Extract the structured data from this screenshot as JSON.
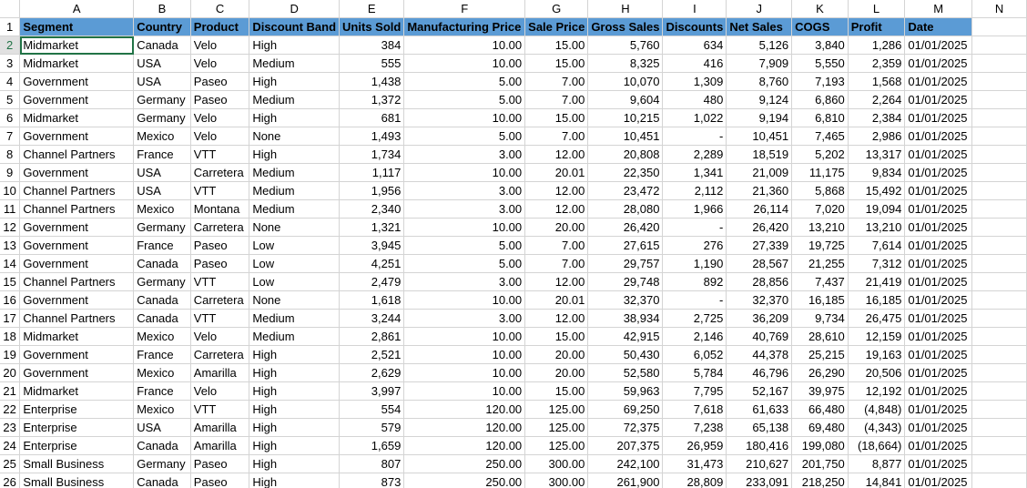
{
  "columns": [
    "A",
    "B",
    "C",
    "D",
    "E",
    "F",
    "G",
    "H",
    "I",
    "J",
    "K",
    "L",
    "M",
    "N"
  ],
  "headers": [
    "Segment",
    "Country",
    "Product",
    "Discount Band",
    "Units Sold",
    "Manufacturing Price",
    "Sale Price",
    "Gross Sales",
    "Discounts",
    "Net Sales",
    "COGS",
    "Profit",
    "Date"
  ],
  "row_numbers": [
    "1",
    "2",
    "3",
    "4",
    "5",
    "6",
    "7",
    "8",
    "9",
    "10",
    "11",
    "12",
    "13",
    "14",
    "15",
    "16",
    "17",
    "18",
    "19",
    "20",
    "21",
    "22",
    "23",
    "24",
    "25",
    "26"
  ],
  "rows": [
    [
      "Midmarket",
      "Canada",
      "Velo",
      "High",
      "384",
      "10.00",
      "15.00",
      "5,760",
      "634",
      "5,126",
      "3,840",
      "1,286",
      "01/01/2025"
    ],
    [
      "Midmarket",
      "USA",
      "Velo",
      "Medium",
      "555",
      "10.00",
      "15.00",
      "8,325",
      "416",
      "7,909",
      "5,550",
      "2,359",
      "01/01/2025"
    ],
    [
      "Government",
      "USA",
      "Paseo",
      "High",
      "1,438",
      "5.00",
      "7.00",
      "10,070",
      "1,309",
      "8,760",
      "7,193",
      "1,568",
      "01/01/2025"
    ],
    [
      "Government",
      "Germany",
      "Paseo",
      "Medium",
      "1,372",
      "5.00",
      "7.00",
      "9,604",
      "480",
      "9,124",
      "6,860",
      "2,264",
      "01/01/2025"
    ],
    [
      "Midmarket",
      "Germany",
      "Velo",
      "High",
      "681",
      "10.00",
      "15.00",
      "10,215",
      "1,022",
      "9,194",
      "6,810",
      "2,384",
      "01/01/2025"
    ],
    [
      "Government",
      "Mexico",
      "Velo",
      "None",
      "1,493",
      "5.00",
      "7.00",
      "10,451",
      "-",
      "10,451",
      "7,465",
      "2,986",
      "01/01/2025"
    ],
    [
      "Channel Partners",
      "France",
      "VTT",
      "High",
      "1,734",
      "3.00",
      "12.00",
      "20,808",
      "2,289",
      "18,519",
      "5,202",
      "13,317",
      "01/01/2025"
    ],
    [
      "Government",
      "USA",
      "Carretera",
      "Medium",
      "1,117",
      "10.00",
      "20.01",
      "22,350",
      "1,341",
      "21,009",
      "11,175",
      "9,834",
      "01/01/2025"
    ],
    [
      "Channel Partners",
      "USA",
      "VTT",
      "Medium",
      "1,956",
      "3.00",
      "12.00",
      "23,472",
      "2,112",
      "21,360",
      "5,868",
      "15,492",
      "01/01/2025"
    ],
    [
      "Channel Partners",
      "Mexico",
      "Montana",
      "Medium",
      "2,340",
      "3.00",
      "12.00",
      "28,080",
      "1,966",
      "26,114",
      "7,020",
      "19,094",
      "01/01/2025"
    ],
    [
      "Government",
      "Germany",
      "Carretera",
      "None",
      "1,321",
      "10.00",
      "20.00",
      "26,420",
      "-",
      "26,420",
      "13,210",
      "13,210",
      "01/01/2025"
    ],
    [
      "Government",
      "France",
      "Paseo",
      "Low",
      "3,945",
      "5.00",
      "7.00",
      "27,615",
      "276",
      "27,339",
      "19,725",
      "7,614",
      "01/01/2025"
    ],
    [
      "Government",
      "Canada",
      "Paseo",
      "Low",
      "4,251",
      "5.00",
      "7.00",
      "29,757",
      "1,190",
      "28,567",
      "21,255",
      "7,312",
      "01/01/2025"
    ],
    [
      "Channel Partners",
      "Germany",
      "VTT",
      "Low",
      "2,479",
      "3.00",
      "12.00",
      "29,748",
      "892",
      "28,856",
      "7,437",
      "21,419",
      "01/01/2025"
    ],
    [
      "Government",
      "Canada",
      "Carretera",
      "None",
      "1,618",
      "10.00",
      "20.01",
      "32,370",
      "-",
      "32,370",
      "16,185",
      "16,185",
      "01/01/2025"
    ],
    [
      "Channel Partners",
      "Canada",
      "VTT",
      "Medium",
      "3,244",
      "3.00",
      "12.00",
      "38,934",
      "2,725",
      "36,209",
      "9,734",
      "26,475",
      "01/01/2025"
    ],
    [
      "Midmarket",
      "Mexico",
      "Velo",
      "Medium",
      "2,861",
      "10.00",
      "15.00",
      "42,915",
      "2,146",
      "40,769",
      "28,610",
      "12,159",
      "01/01/2025"
    ],
    [
      "Government",
      "France",
      "Carretera",
      "High",
      "2,521",
      "10.00",
      "20.00",
      "50,430",
      "6,052",
      "44,378",
      "25,215",
      "19,163",
      "01/01/2025"
    ],
    [
      "Government",
      "Mexico",
      "Amarilla",
      "High",
      "2,629",
      "10.00",
      "20.00",
      "52,580",
      "5,784",
      "46,796",
      "26,290",
      "20,506",
      "01/01/2025"
    ],
    [
      "Midmarket",
      "France",
      "Velo",
      "High",
      "3,997",
      "10.00",
      "15.00",
      "59,963",
      "7,795",
      "52,167",
      "39,975",
      "12,192",
      "01/01/2025"
    ],
    [
      "Enterprise",
      "Mexico",
      "VTT",
      "High",
      "554",
      "120.00",
      "125.00",
      "69,250",
      "7,618",
      "61,633",
      "66,480",
      "(4,848)",
      "01/01/2025"
    ],
    [
      "Enterprise",
      "USA",
      "Amarilla",
      "High",
      "579",
      "120.00",
      "125.00",
      "72,375",
      "7,238",
      "65,138",
      "69,480",
      "(4,343)",
      "01/01/2025"
    ],
    [
      "Enterprise",
      "Canada",
      "Amarilla",
      "High",
      "1,659",
      "120.00",
      "125.00",
      "207,375",
      "26,959",
      "180,416",
      "199,080",
      "(18,664)",
      "01/01/2025"
    ],
    [
      "Small Business",
      "Germany",
      "Paseo",
      "High",
      "807",
      "250.00",
      "300.00",
      "242,100",
      "31,473",
      "210,627",
      "201,750",
      "8,877",
      "01/01/2025"
    ],
    [
      "Small Business",
      "Canada",
      "Paseo",
      "High",
      "873",
      "250.00",
      "300.00",
      "261,900",
      "28,809",
      "233,091",
      "218,250",
      "14,841",
      "01/01/2025"
    ]
  ],
  "selected_cell": "A2",
  "colors": {
    "header_fill": "#5b9bd5",
    "gridline": "#d4d4d4",
    "active_accent": "#217346"
  }
}
